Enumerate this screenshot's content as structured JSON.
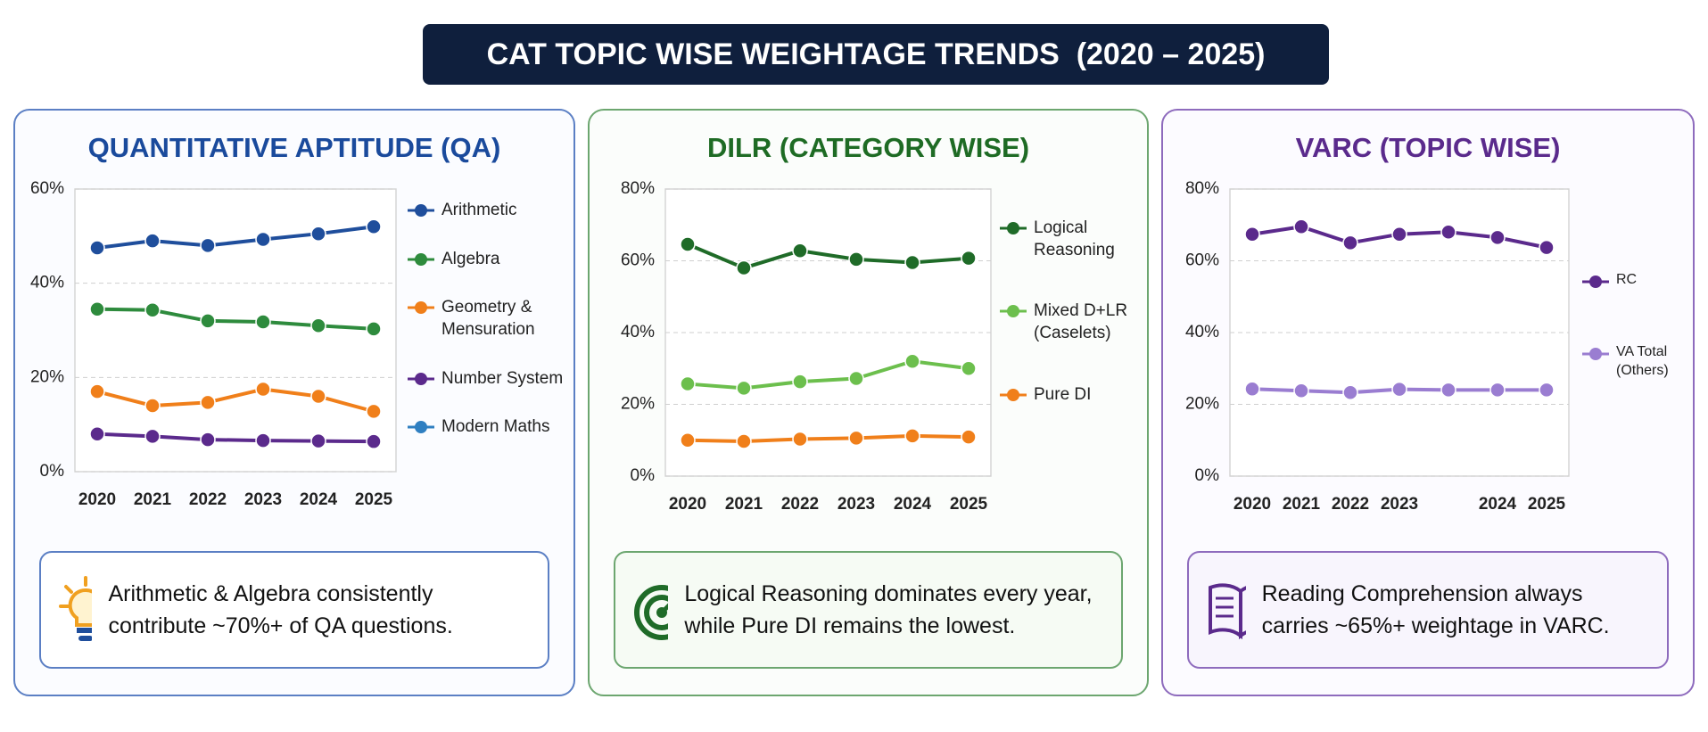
{
  "title": "CAT TOPIC WISE WEIGHTAGE TRENDS  (2020 – 2025)",
  "chart_data": [
    {
      "type": "line",
      "title": "QUANTITATIVE APTITUDE (QA)",
      "annotation": "Arithmetic & Algebra consistently contribute ~70%+ of QA questions.",
      "categories": [
        "2020",
        "2021",
        "2022",
        "2023",
        "2024",
        "2025"
      ],
      "ylim": [
        0,
        60
      ],
      "yticks": [
        {
          "value": 0,
          "label": "0%"
        },
        {
          "value": 20,
          "label": "20%"
        },
        {
          "value": 40,
          "label": "40%"
        },
        {
          "value": 60,
          "label": "60%"
        }
      ],
      "grid": true,
      "series": [
        {
          "name": "Arithmetic",
          "color": "#1f4e9c",
          "values": [
            47.5,
            49,
            48,
            49.3,
            50.5,
            52
          ]
        },
        {
          "name": "Algebra",
          "color": "#2e8b3d",
          "values": [
            34.5,
            34.3,
            32,
            31.8,
            31,
            30.3
          ]
        },
        {
          "name": "Geometry & Mensuration",
          "color": "#f07f1a",
          "values": [
            17,
            14,
            14.7,
            17.5,
            16,
            12.8
          ]
        },
        {
          "name": "Number System",
          "color": "#5b2a8c",
          "values": [
            8,
            7.5,
            6.8,
            6.6,
            6.5,
            6.4
          ]
        },
        {
          "name": "Modern Maths",
          "color": "#2f7fc1",
          "values": [
            null,
            null,
            null,
            null,
            null,
            null
          ]
        }
      ]
    },
    {
      "type": "line",
      "title": "DILR (CATEGORY WISE)",
      "annotation": "Logical Reasoning dominates every year, while Pure DI remains the lowest.",
      "categories": [
        "2020",
        "2021",
        "2022",
        "2023",
        "2024",
        "2025"
      ],
      "ylim": [
        0,
        80
      ],
      "yticks": [
        {
          "value": 0,
          "label": "0%"
        },
        {
          "value": 20,
          "label": "20%"
        },
        {
          "value": 40,
          "label": "40%"
        },
        {
          "value": 60,
          "label": "60%"
        },
        {
          "value": 80,
          "label": "80%"
        }
      ],
      "grid": true,
      "series": [
        {
          "name": "Logical Reasoning",
          "color": "#1f6b28",
          "values": [
            64.6,
            58,
            62.8,
            60.4,
            59.5,
            60.7
          ]
        },
        {
          "name": "Mixed D+LR (Caselets)",
          "color": "#6cbf4d",
          "values": [
            25.7,
            24.5,
            26.3,
            27.2,
            32,
            30
          ]
        },
        {
          "name": "Pure DI",
          "color": "#f07f1a",
          "values": [
            10,
            9.7,
            10.3,
            10.6,
            11.2,
            10.9
          ]
        }
      ]
    },
    {
      "type": "line",
      "title": "VARC (TOPIC WISE)",
      "annotation": "Reading Comprehension always carries ~65%+ weightage in VARC.",
      "categories": [
        "2020",
        "2021",
        "2022",
        "2023",
        null,
        "2024",
        "2025"
      ],
      "ylim": [
        0,
        80
      ],
      "yticks": [
        {
          "value": 0,
          "label": "0%"
        },
        {
          "value": 20,
          "label": "20%"
        },
        {
          "value": 40,
          "label": "40%"
        },
        {
          "value": 60,
          "label": "60%"
        },
        {
          "value": 80,
          "label": "80%"
        }
      ],
      "grid": true,
      "series": [
        {
          "name": "RC",
          "color": "#5b2a8c",
          "values": [
            67.4,
            69.5,
            65,
            67.4,
            68,
            66.5,
            63.7
          ]
        },
        {
          "name": "VA Total (Others)",
          "color": "#9a7dd1",
          "values": [
            24.3,
            23.8,
            23.3,
            24.2,
            24,
            24,
            24
          ]
        }
      ]
    }
  ]
}
